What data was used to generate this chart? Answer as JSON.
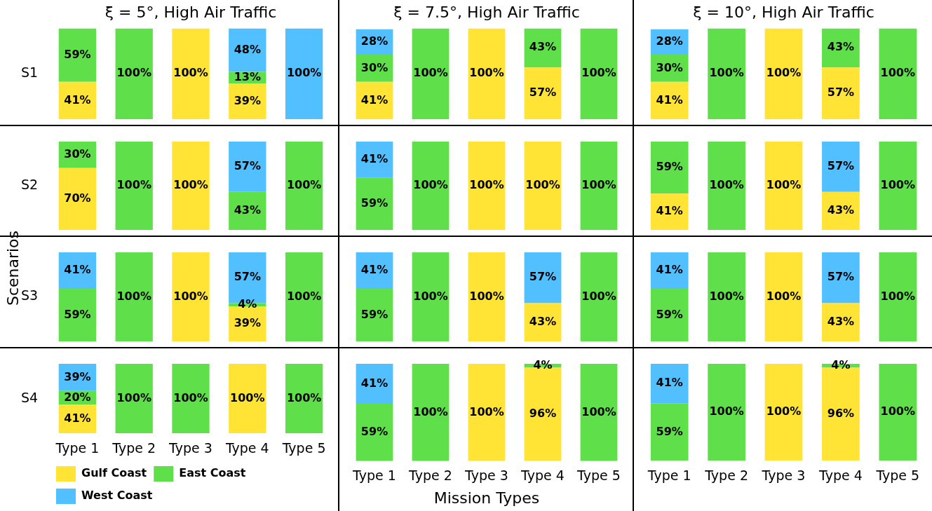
{
  "chart_data": [
    {
      "type": "bar",
      "stacked": true,
      "title": "ξ = 5°, High Air Traffic",
      "ylabel": "S1",
      "annotations": [
        "Scenarios"
      ],
      "categories": [
        null,
        null,
        null,
        null,
        null
      ],
      "ylim": [
        0,
        100
      ],
      "tick_labels": false,
      "series": [
        {
          "color": "#ffe436",
          "values": [
            41,
            null,
            100,
            39,
            null
          ],
          "value_labels": [
            "41%",
            null,
            "100%",
            "39%",
            null
          ]
        },
        {
          "color": "#5fe04a",
          "values": [
            59,
            100,
            null,
            13,
            null
          ],
          "value_labels": [
            "59%",
            "100%",
            null,
            "13%",
            null
          ]
        },
        {
          "color": "#52bfff",
          "values": [
            null,
            null,
            null,
            48,
            100
          ],
          "value_labels": [
            null,
            null,
            null,
            "48%",
            "100%"
          ]
        }
      ]
    },
    {
      "type": "bar",
      "stacked": true,
      "title": "ξ = 7.5°, High Air Traffic",
      "categories": [
        null,
        null,
        null,
        null,
        null
      ],
      "ylim": [
        0,
        100
      ],
      "tick_labels": false,
      "series": [
        {
          "color": "#ffe436",
          "values": [
            41,
            null,
            100,
            57,
            null
          ],
          "value_labels": [
            "41%",
            null,
            "100%",
            "57%",
            null
          ]
        },
        {
          "color": "#5fe04a",
          "values": [
            30,
            100,
            null,
            43,
            100
          ],
          "value_labels": [
            "30%",
            "100%",
            null,
            "43%",
            "100%"
          ]
        },
        {
          "color": "#52bfff",
          "values": [
            28,
            null,
            null,
            null,
            null
          ],
          "value_labels": [
            "28%",
            null,
            null,
            null,
            null
          ]
        }
      ]
    },
    {
      "type": "bar",
      "stacked": true,
      "title": "ξ = 10°, High Air Traffic",
      "categories": [
        null,
        null,
        null,
        null,
        null
      ],
      "ylim": [
        0,
        100
      ],
      "tick_labels": false,
      "series": [
        {
          "color": "#ffe436",
          "values": [
            41,
            null,
            100,
            57,
            null
          ],
          "value_labels": [
            "41%",
            null,
            "100%",
            "57%",
            null
          ]
        },
        {
          "color": "#5fe04a",
          "values": [
            30,
            100,
            null,
            43,
            100
          ],
          "value_labels": [
            "30%",
            "100%",
            null,
            "43%",
            "100%"
          ]
        },
        {
          "color": "#52bfff",
          "values": [
            28,
            null,
            null,
            null,
            null
          ],
          "value_labels": [
            "28%",
            null,
            null,
            null,
            null
          ]
        }
      ]
    },
    {
      "type": "bar",
      "stacked": true,
      "ylabel": "S2",
      "categories": [
        null,
        null,
        null,
        null,
        null
      ],
      "ylim": [
        0,
        100
      ],
      "tick_labels": false,
      "series": [
        {
          "color": "#ffe436",
          "values": [
            70,
            null,
            100,
            null,
            null
          ],
          "value_labels": [
            "70%",
            null,
            "100%",
            null,
            null
          ]
        },
        {
          "color": "#5fe04a",
          "values": [
            30,
            100,
            null,
            43,
            100
          ],
          "value_labels": [
            "30%",
            "100%",
            null,
            "43%",
            "100%"
          ]
        },
        {
          "color": "#52bfff",
          "values": [
            null,
            null,
            null,
            57,
            null
          ],
          "value_labels": [
            null,
            null,
            null,
            "57%",
            null
          ]
        }
      ]
    },
    {
      "type": "bar",
      "stacked": true,
      "categories": [
        null,
        null,
        null,
        null,
        null
      ],
      "ylim": [
        0,
        100
      ],
      "tick_labels": false,
      "series": [
        {
          "color": "#ffe436",
          "values": [
            null,
            null,
            100,
            100,
            null
          ],
          "value_labels": [
            null,
            null,
            "100%",
            "100%",
            null
          ]
        },
        {
          "color": "#5fe04a",
          "values": [
            59,
            100,
            null,
            null,
            100
          ],
          "value_labels": [
            "59%",
            "100%",
            null,
            null,
            "100%"
          ]
        },
        {
          "color": "#52bfff",
          "values": [
            41,
            null,
            null,
            null,
            null
          ],
          "value_labels": [
            "41%",
            null,
            null,
            null,
            null
          ]
        }
      ]
    },
    {
      "type": "bar",
      "stacked": true,
      "categories": [
        null,
        null,
        null,
        null,
        null
      ],
      "ylim": [
        0,
        100
      ],
      "tick_labels": false,
      "series": [
        {
          "color": "#ffe436",
          "values": [
            41,
            null,
            100,
            43,
            null
          ],
          "value_labels": [
            "41%",
            null,
            "100%",
            "43%",
            null
          ]
        },
        {
          "color": "#5fe04a",
          "values": [
            59,
            100,
            null,
            null,
            100
          ],
          "value_labels": [
            "59%",
            "100%",
            null,
            null,
            "100%"
          ]
        },
        {
          "color": "#52bfff",
          "values": [
            null,
            null,
            null,
            57,
            null
          ],
          "value_labels": [
            null,
            null,
            null,
            "57%",
            null
          ]
        }
      ]
    },
    {
      "type": "bar",
      "stacked": true,
      "ylabel": "S3",
      "categories": [
        null,
        null,
        null,
        null,
        null
      ],
      "ylim": [
        0,
        100
      ],
      "tick_labels": false,
      "series": [
        {
          "color": "#ffe436",
          "values": [
            null,
            null,
            100,
            39,
            null
          ],
          "value_labels": [
            null,
            null,
            "100%",
            "39%",
            null
          ]
        },
        {
          "color": "#5fe04a",
          "values": [
            59,
            100,
            null,
            4,
            100
          ],
          "value_labels": [
            "59%",
            "100%",
            null,
            "4%",
            "100%"
          ]
        },
        {
          "color": "#52bfff",
          "values": [
            41,
            null,
            null,
            57,
            null
          ],
          "value_labels": [
            "41%",
            null,
            null,
            "57%",
            null
          ]
        }
      ]
    },
    {
      "type": "bar",
      "stacked": true,
      "categories": [
        null,
        null,
        null,
        null,
        null
      ],
      "ylim": [
        0,
        100
      ],
      "tick_labels": false,
      "series": [
        {
          "color": "#ffe436",
          "values": [
            null,
            null,
            100,
            43,
            null
          ],
          "value_labels": [
            null,
            null,
            "100%",
            "43%",
            null
          ]
        },
        {
          "color": "#5fe04a",
          "values": [
            59,
            100,
            null,
            null,
            100
          ],
          "value_labels": [
            "59%",
            "100%",
            null,
            null,
            "100%"
          ]
        },
        {
          "color": "#52bfff",
          "values": [
            41,
            null,
            null,
            57,
            null
          ],
          "value_labels": [
            "41%",
            null,
            null,
            "57%",
            null
          ]
        }
      ]
    },
    {
      "type": "bar",
      "stacked": true,
      "categories": [
        null,
        null,
        null,
        null,
        null
      ],
      "ylim": [
        0,
        100
      ],
      "tick_labels": false,
      "series": [
        {
          "color": "#ffe436",
          "values": [
            null,
            null,
            100,
            43,
            null
          ],
          "value_labels": [
            null,
            null,
            "100%",
            "43%",
            null
          ]
        },
        {
          "color": "#5fe04a",
          "values": [
            59,
            100,
            null,
            null,
            100
          ],
          "value_labels": [
            "59%",
            "100%",
            null,
            null,
            "100%"
          ]
        },
        {
          "color": "#52bfff",
          "values": [
            41,
            null,
            null,
            57,
            null
          ],
          "value_labels": [
            "41%",
            null,
            null,
            "57%",
            null
          ]
        }
      ]
    },
    {
      "type": "bar",
      "stacked": true,
      "ylabel": "S4",
      "legend": "bottom left",
      "categories": [
        "Type 1",
        "Type 2",
        "Type 3",
        "Type 4",
        "Type 5"
      ],
      "ylim": [
        0,
        100
      ],
      "tick_labels": "x",
      "series": [
        {
          "name": "Gulf Coast",
          "color": "#ffe436",
          "values": [
            41,
            null,
            null,
            100,
            null
          ],
          "value_labels": [
            "41%",
            null,
            null,
            "100%",
            null
          ]
        },
        {
          "name": "East Coast",
          "color": "#5fe04a",
          "values": [
            20,
            100,
            100,
            null,
            100
          ],
          "value_labels": [
            "20%",
            "100%",
            "100%",
            null,
            "100%"
          ]
        },
        {
          "name": "West Coast",
          "color": "#52bfff",
          "values": [
            39,
            null,
            null,
            null,
            null
          ],
          "value_labels": [
            "39%",
            null,
            null,
            null,
            null
          ]
        }
      ]
    },
    {
      "type": "bar",
      "stacked": true,
      "xlabel": "Mission Types",
      "categories": [
        "Type 1",
        "Type 2",
        "Type 3",
        "Type 4",
        "Type 5"
      ],
      "ylim": [
        0,
        100
      ],
      "tick_labels": "x",
      "series": [
        {
          "color": "#ffe436",
          "values": [
            null,
            null,
            100,
            96,
            null
          ],
          "value_labels": [
            null,
            null,
            "100%",
            "96%",
            null
          ]
        },
        {
          "color": "#5fe04a",
          "values": [
            59,
            100,
            null,
            4,
            100
          ],
          "value_labels": [
            "59%",
            "100%",
            null,
            "4%",
            "100%"
          ]
        },
        {
          "color": "#52bfff",
          "values": [
            41,
            null,
            null,
            null,
            null
          ],
          "value_labels": [
            "41%",
            null,
            null,
            null,
            null
          ]
        }
      ]
    },
    {
      "type": "bar",
      "stacked": true,
      "categories": [
        "Type 1",
        "Type 2",
        "Type 3",
        "Type 4",
        "Type 5"
      ],
      "ylim": [
        0,
        100
      ],
      "tick_labels": "x",
      "series": [
        {
          "color": "#ffe436",
          "values": [
            null,
            null,
            100,
            96,
            null
          ],
          "value_labels": [
            null,
            null,
            "100%",
            "96%",
            null
          ]
        },
        {
          "color": "#5fe04a",
          "values": [
            59,
            100,
            null,
            4,
            100
          ],
          "value_labels": [
            "59%",
            "100%",
            null,
            "4%",
            "100%"
          ]
        },
        {
          "color": "#52bfff",
          "values": [
            41,
            null,
            null,
            null,
            null
          ],
          "value_labels": [
            "41%",
            null,
            null,
            null,
            null
          ]
        }
      ]
    }
  ]
}
